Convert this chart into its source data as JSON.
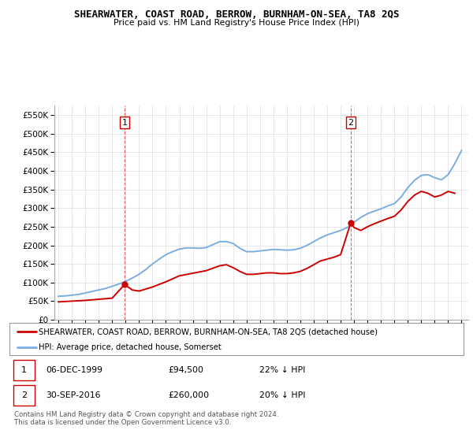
{
  "title": "SHEARWATER, COAST ROAD, BERROW, BURNHAM-ON-SEA, TA8 2QS",
  "subtitle": "Price paid vs. HM Land Registry's House Price Index (HPI)",
  "legend_line1": "SHEARWATER, COAST ROAD, BERROW, BURNHAM-ON-SEA, TA8 2QS (detached house)",
  "legend_line2": "HPI: Average price, detached house, Somerset",
  "footer": "Contains HM Land Registry data © Crown copyright and database right 2024.\nThis data is licensed under the Open Government Licence v3.0.",
  "table_rows": [
    {
      "num": "1",
      "date": "06-DEC-1999",
      "price": "£94,500",
      "hpi": "22% ↓ HPI"
    },
    {
      "num": "2",
      "date": "30-SEP-2016",
      "price": "£260,000",
      "hpi": "20% ↓ HPI"
    }
  ],
  "red_color": "#cc0000",
  "blue_color": "#7aade0",
  "ylim": [
    0,
    575000
  ],
  "yticks": [
    0,
    50000,
    100000,
    150000,
    200000,
    250000,
    300000,
    350000,
    400000,
    450000,
    500000,
    550000
  ],
  "hpi_years": [
    1995.0,
    1995.5,
    1996.0,
    1996.5,
    1997.0,
    1997.5,
    1998.0,
    1998.5,
    1999.0,
    1999.5,
    2000.0,
    2000.5,
    2001.0,
    2001.5,
    2002.0,
    2002.5,
    2003.0,
    2003.5,
    2004.0,
    2004.5,
    2005.0,
    2005.5,
    2006.0,
    2006.5,
    2007.0,
    2007.5,
    2008.0,
    2008.5,
    2009.0,
    2009.5,
    2010.0,
    2010.5,
    2011.0,
    2011.5,
    2012.0,
    2012.5,
    2013.0,
    2013.5,
    2014.0,
    2014.5,
    2015.0,
    2015.5,
    2016.0,
    2016.5,
    2017.0,
    2017.5,
    2018.0,
    2018.5,
    2019.0,
    2019.5,
    2020.0,
    2020.5,
    2021.0,
    2021.5,
    2022.0,
    2022.5,
    2023.0,
    2023.5,
    2024.0,
    2024.5,
    2025.0
  ],
  "hpi_values": [
    63000,
    64000,
    66000,
    68000,
    72000,
    76000,
    80000,
    84000,
    90000,
    96000,
    103000,
    112000,
    122000,
    135000,
    150000,
    163000,
    175000,
    183000,
    190000,
    193000,
    193000,
    192000,
    194000,
    202000,
    210000,
    210000,
    205000,
    192000,
    183000,
    183000,
    185000,
    187000,
    189000,
    188000,
    187000,
    188000,
    192000,
    200000,
    210000,
    220000,
    228000,
    234000,
    240000,
    248000,
    262000,
    275000,
    285000,
    292000,
    298000,
    306000,
    312000,
    330000,
    355000,
    375000,
    388000,
    390000,
    382000,
    376000,
    390000,
    420000,
    455000
  ],
  "red_years": [
    1995.0,
    1996.0,
    1997.0,
    1998.0,
    1999.0,
    1999.92,
    2000.5,
    2001.0,
    2002.0,
    2003.0,
    2004.0,
    2005.0,
    2006.0,
    2007.0,
    2007.5,
    2008.0,
    2008.5,
    2009.0,
    2009.5,
    2010.0,
    2010.5,
    2011.0,
    2011.5,
    2012.0,
    2012.5,
    2013.0,
    2013.5,
    2014.0,
    2014.5,
    2015.0,
    2015.5,
    2016.0,
    2016.75,
    2017.0,
    2017.5,
    2018.0,
    2018.5,
    2019.0,
    2019.5,
    2020.0,
    2020.5,
    2021.0,
    2021.5,
    2022.0,
    2022.5,
    2023.0,
    2023.5,
    2024.0,
    2024.5
  ],
  "red_values": [
    48000,
    50000,
    52000,
    55000,
    58000,
    94500,
    80000,
    77000,
    88000,
    102000,
    118000,
    125000,
    132000,
    145000,
    148000,
    140000,
    130000,
    122000,
    122000,
    124000,
    126000,
    126000,
    124000,
    124000,
    126000,
    130000,
    138000,
    148000,
    158000,
    163000,
    168000,
    175000,
    260000,
    248000,
    240000,
    250000,
    258000,
    265000,
    272000,
    278000,
    295000,
    318000,
    335000,
    345000,
    340000,
    330000,
    335000,
    345000,
    340000
  ],
  "marker1_year": 1999.92,
  "marker1_value": 94500,
  "marker2_year": 2016.75,
  "marker2_value": 260000,
  "dashed1_year": 1999.92,
  "dashed2_year": 2016.75
}
